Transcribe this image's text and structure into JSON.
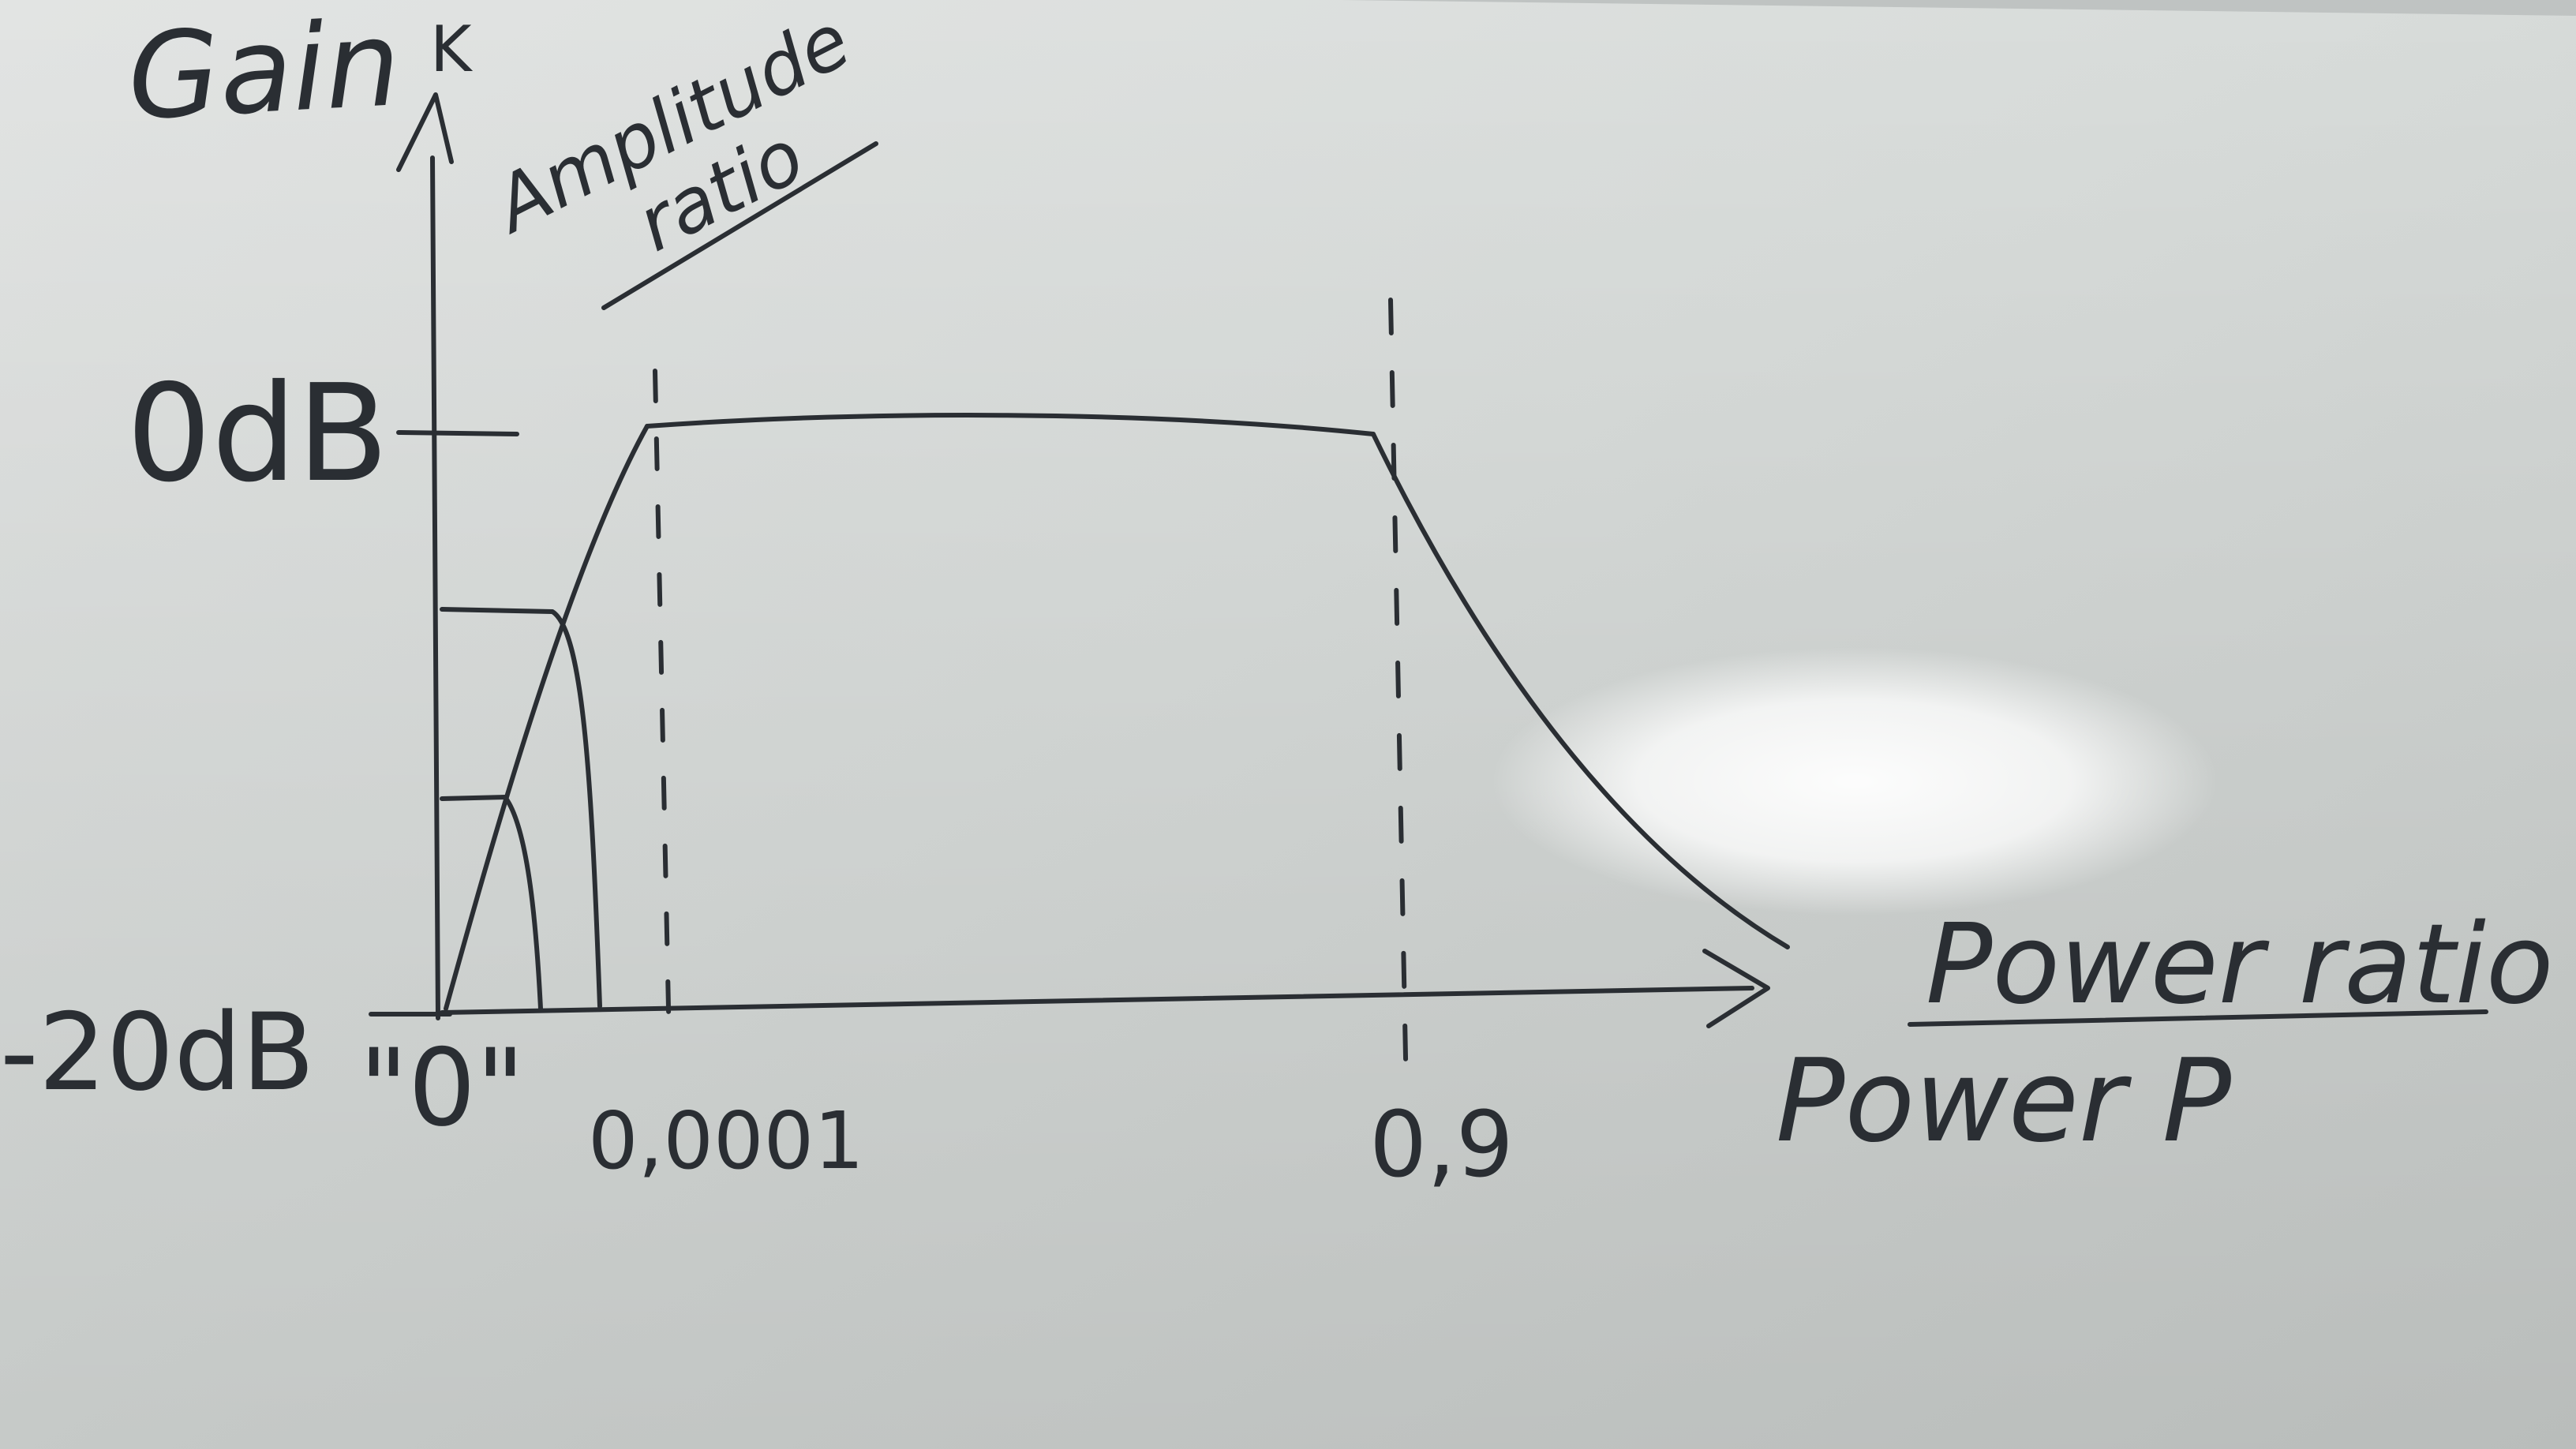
{
  "board_labels": {
    "gain": "Gain",
    "k_symbol": "K",
    "amplitude": "Amplitude",
    "ratio": "ratio",
    "zero_db": "0dB",
    "minus_20_db": "-20dB",
    "zero_quote": "\"0\"",
    "tick_0_0001": "0,0001",
    "tick_0_9": "0,9",
    "power_ratio": "Power ratio",
    "power_p": "Power P"
  },
  "ink_color": "#2a2e33",
  "board_color": "#d9dcda"
}
